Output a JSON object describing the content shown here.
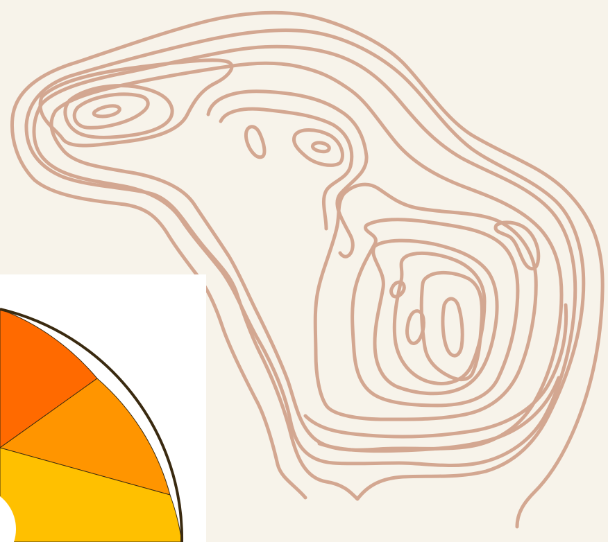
{
  "illustration": {
    "subject": "topographic-contour-lines",
    "stroke_color": "#d3a791",
    "background_color": "#f7f3ea"
  },
  "color_wheel_fragment": {
    "panel_color": "#ffffff",
    "outline_color": "#3a2a10",
    "segment_colors": [
      "#ff6a00",
      "#ff9500",
      "#ffc000"
    ]
  }
}
